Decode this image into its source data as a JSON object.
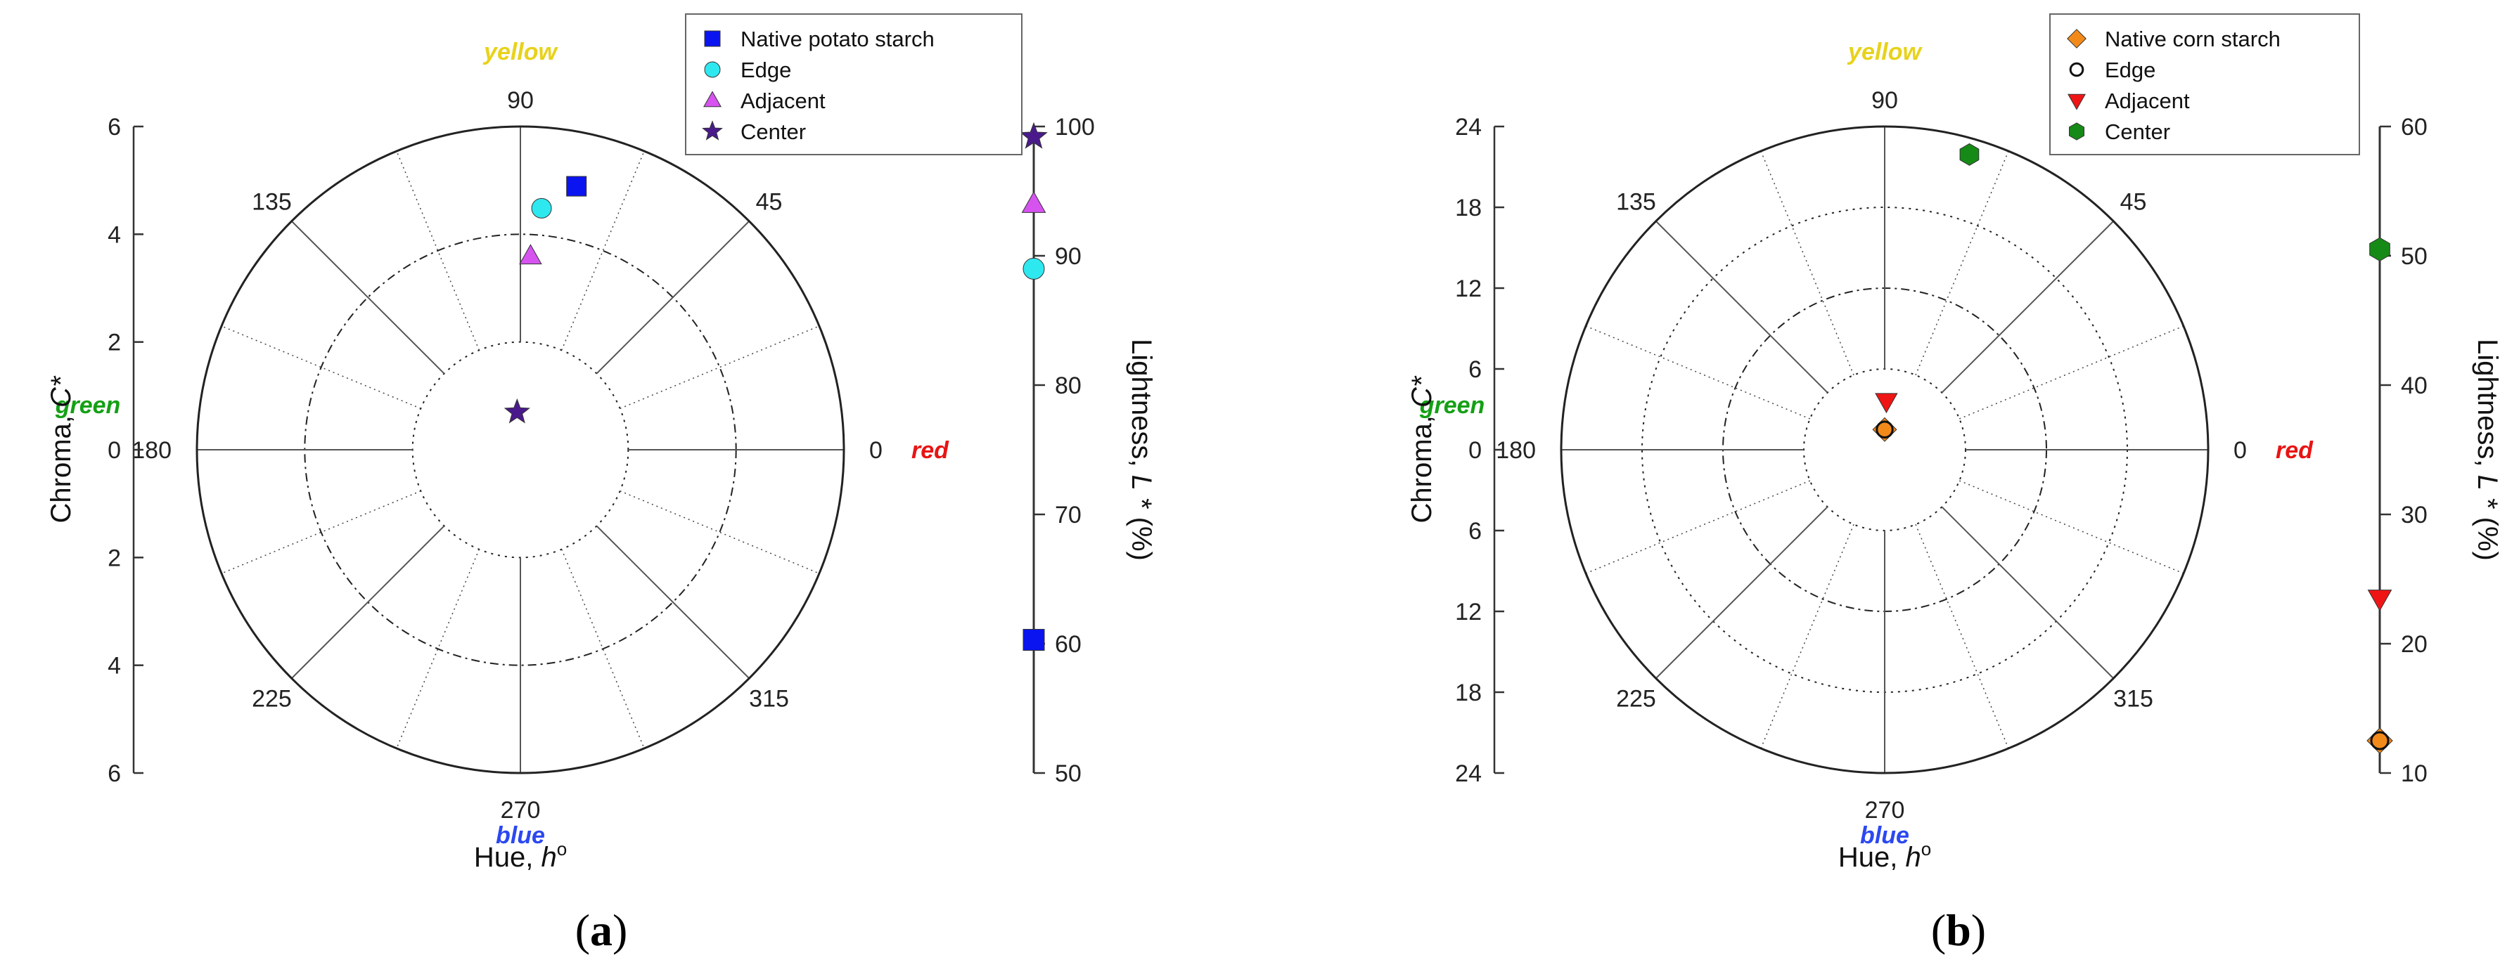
{
  "chart_data": [
    {
      "type": "scatter",
      "panel_label": "a",
      "polar": {
        "angle_label": "Hue, ",
        "angle_symbol": "h",
        "angle_sup": "o",
        "radial_label": "Chroma, ",
        "radial_symbol": "C*",
        "radial_max": 6,
        "radial_ticks": [
          6,
          4,
          2,
          0,
          2,
          4,
          6
        ],
        "angle_ticks": [
          "0",
          "45",
          "90",
          "135",
          "180",
          "225",
          "270",
          "315"
        ],
        "hue_words": {
          "yellow": "yellow",
          "red": "red",
          "green": "green",
          "blue": "blue"
        }
      },
      "lightness": {
        "label": "Lightness, ",
        "symbol": "L",
        "unit": " * (%)",
        "range": [
          50,
          100
        ],
        "ticks": [
          "50",
          "60",
          "70",
          "80",
          "90",
          "100"
        ]
      },
      "legend": [
        "Native potato starch",
        "Edge",
        "Adjacent",
        "Center"
      ],
      "series": [
        {
          "name": "Native potato starch",
          "marker": "square",
          "color": "#0a14f0",
          "hue": 78,
          "chroma": 5.0,
          "lightness": 60.3
        },
        {
          "name": "Edge",
          "marker": "circle",
          "color": "#2ee8f0",
          "hue": 85,
          "chroma": 4.5,
          "lightness": 89.0
        },
        {
          "name": "Adjacent",
          "marker": "triangle-up",
          "color": "#d653f0",
          "hue": 87,
          "chroma": 3.6,
          "lightness": 94.0
        },
        {
          "name": "Center",
          "marker": "star",
          "color": "#4a1a8c",
          "hue": 95,
          "chroma": 0.7,
          "lightness": 99.2
        }
      ]
    },
    {
      "type": "scatter",
      "panel_label": "b",
      "polar": {
        "angle_label": "Hue, ",
        "angle_symbol": "h",
        "angle_sup": "o",
        "radial_label": "Chroma, ",
        "radial_symbol": "C*",
        "radial_max": 24,
        "radial_ticks": [
          24,
          18,
          12,
          6,
          0,
          6,
          12,
          18,
          24
        ],
        "angle_ticks": [
          "0",
          "45",
          "90",
          "135",
          "180",
          "225",
          "270",
          "315"
        ],
        "hue_words": {
          "yellow": "yellow",
          "red": "red",
          "green": "green",
          "blue": "blue"
        }
      },
      "lightness": {
        "label": "Lightness, ",
        "symbol": "L",
        "unit": " * (%)",
        "range": [
          10,
          60
        ],
        "ticks": [
          "10",
          "20",
          "30",
          "40",
          "50",
          "60"
        ]
      },
      "legend": [
        "Native corn starch",
        "Edge",
        "Adjacent",
        "Center"
      ],
      "series": [
        {
          "name": "Native corn starch",
          "marker": "diamond",
          "color": "#f28a1a",
          "hue": 90,
          "chroma": 1.5,
          "lightness": 12.5
        },
        {
          "name": "Edge",
          "marker": "open-circle",
          "color": "#111111",
          "hue": 90,
          "chroma": 1.5,
          "lightness": 12.5
        },
        {
          "name": "Adjacent",
          "marker": "triangle-down",
          "color": "#f01515",
          "hue": 88,
          "chroma": 3.6,
          "lightness": 23.5
        },
        {
          "name": "Center",
          "marker": "hexagon",
          "color": "#168a16",
          "hue": 74,
          "chroma": 22.8,
          "lightness": 50.5
        }
      ]
    }
  ],
  "colors": {
    "yellow": "#e8d21c",
    "red": "#e81414",
    "green": "#14a014",
    "blue": "#2b48f0"
  }
}
